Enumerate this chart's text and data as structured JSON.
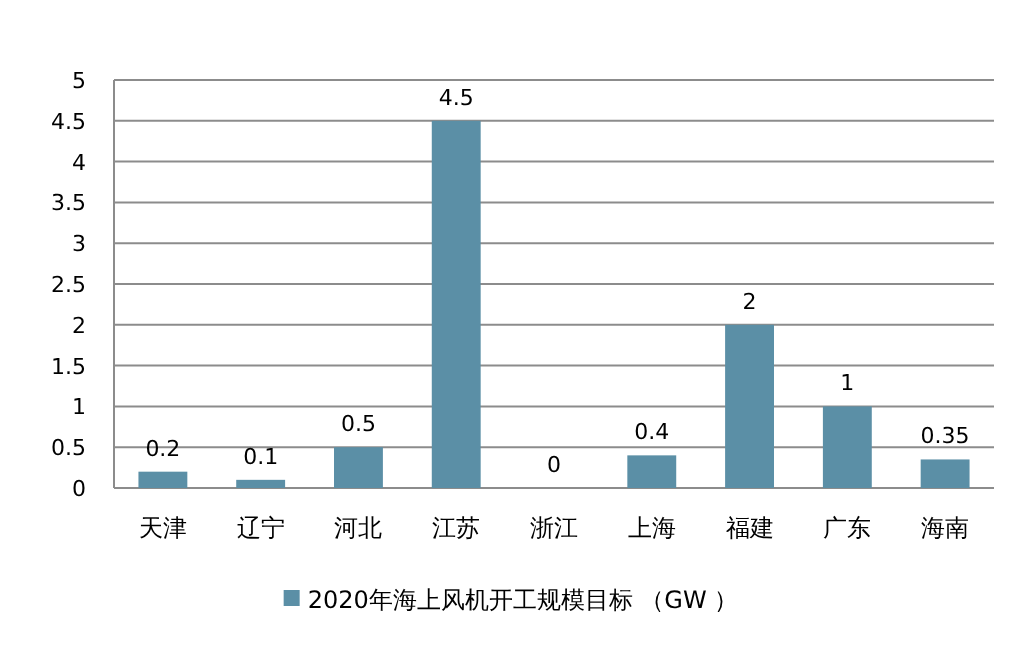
{
  "chart_data": {
    "type": "bar",
    "categories": [
      "天津",
      "辽宁",
      "河北",
      "江苏",
      "浙江",
      "上海",
      "福建",
      "广东",
      "海南"
    ],
    "series": [
      {
        "name": "2020年海上风机开工规模目标 （GW ）",
        "color": "#5b8fa6",
        "values": [
          0.2,
          0.1,
          0.5,
          4.5,
          0,
          0.4,
          2,
          1,
          0.35
        ]
      }
    ],
    "ylim": [
      0,
      5
    ],
    "yticks": [
      0,
      {
        "value": 0.5,
        "label": "0.5"
      },
      1,
      {
        "value": 1.5,
        "label": "1.5"
      },
      2,
      {
        "value": 2.5,
        "label": "2.5"
      },
      3,
      {
        "value": 3.5,
        "label": "3.5"
      },
      4,
      {
        "value": 4.5,
        "label": "4.5"
      },
      5
    ],
    "grid": "y",
    "data_labels": true,
    "legend": "bottom"
  }
}
